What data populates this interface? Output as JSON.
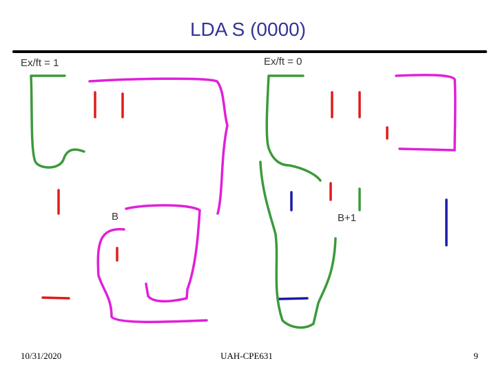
{
  "slide": {
    "title": "LDA S (0000)",
    "labels": [
      "Ex/ft = 1",
      "Ex/ft = 0",
      "B",
      "B+1"
    ],
    "footer": {
      "date": "10/31/2020",
      "course": "UAH-CPE631",
      "page": "9"
    }
  }
}
